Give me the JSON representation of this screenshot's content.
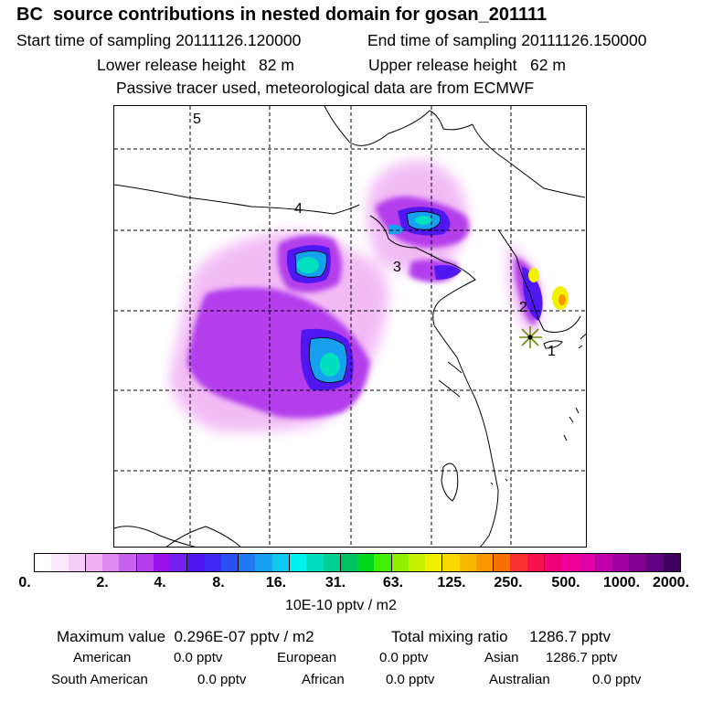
{
  "title": "BC  source contributions in nested domain for gosan_201111",
  "header": {
    "start_label": "Start time of sampling 20111126.120000",
    "end_label": "End time of sampling 20111126.150000",
    "lower_label": "Lower release height   82 m",
    "upper_label": "Upper release height   62 m",
    "tracer_line": "Passive tracer used, meteorological data are from ECMWF"
  },
  "map": {
    "region_labels": [
      "1",
      "2",
      "3",
      "4",
      "5"
    ],
    "receptor_marker_color": "#6a8f00",
    "border_color": "#000000"
  },
  "colorbar": {
    "colors": [
      "#ffffff",
      "#fce8fc",
      "#f6ccf8",
      "#f0b0f4",
      "#dc88f0",
      "#c860ee",
      "#b43cec",
      "#9a10ea",
      "#7420f0",
      "#5018f0",
      "#3c28f0",
      "#2850f0",
      "#2078f0",
      "#18a0f0",
      "#10c8f0",
      "#00f0f0",
      "#00e0c0",
      "#00d090",
      "#00c060",
      "#00d820",
      "#40f000",
      "#90f000",
      "#c8f000",
      "#f0f000",
      "#f8d800",
      "#f8b800",
      "#f89800",
      "#f87000",
      "#f83030",
      "#f81050",
      "#f00078",
      "#f00098",
      "#e000a8",
      "#c000a8",
      "#a000a0",
      "#800090",
      "#600080",
      "#400060"
    ],
    "tick_labels": [
      "0.",
      "2.",
      "4.",
      "8.",
      "16.",
      "31.",
      "63.",
      "125.",
      "250.",
      "500.",
      "1000.",
      "2000."
    ],
    "unit": "10E-10 pptv / m2"
  },
  "footer": {
    "max_value": "Maximum value  0.296E-07 pptv / m2",
    "total_mixing": "Total mixing ratio     1286.7 pptv",
    "american": "American",
    "american_val": "0.0 pptv",
    "european": "European",
    "european_val": "0.0 pptv",
    "asian": "Asian",
    "asian_val": "1286.7 pptv",
    "south_american": "South American",
    "south_american_val": "0.0 pptv",
    "african": "African",
    "african_val": "0.0 pptv",
    "australian": "Australian",
    "australian_val": "0.0 pptv"
  }
}
